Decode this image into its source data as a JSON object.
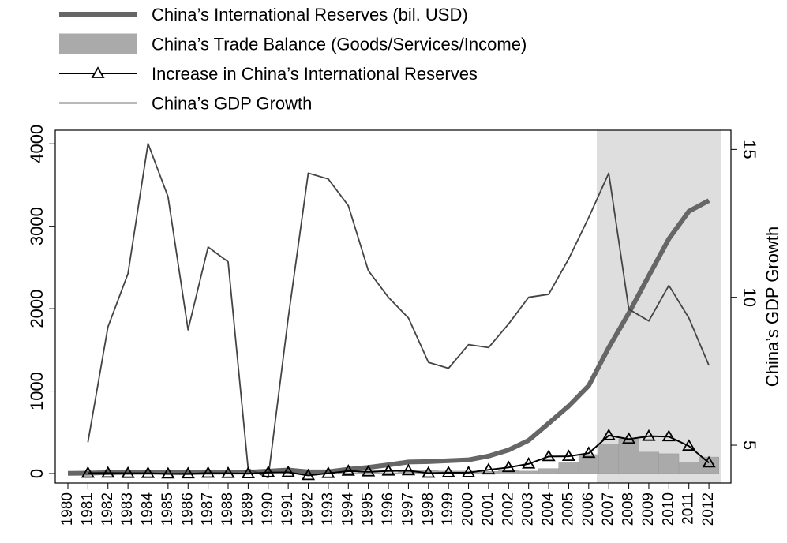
{
  "chart_data": {
    "type": "combo",
    "x": [
      1980,
      1981,
      1982,
      1983,
      1984,
      1985,
      1986,
      1987,
      1988,
      1989,
      1990,
      1991,
      1992,
      1993,
      1994,
      1995,
      1996,
      1997,
      1998,
      1999,
      2000,
      2001,
      2002,
      2003,
      2004,
      2005,
      2006,
      2007,
      2008,
      2009,
      2010,
      2011,
      2012
    ],
    "xlim": [
      1979.37,
      2013.1
    ],
    "ylim": [
      -115,
      4165
    ],
    "yticks": [
      0,
      1000,
      2000,
      3000,
      4000
    ],
    "y2lim": [
      3.72,
      15.65
    ],
    "y2ticks": [
      5,
      10,
      15
    ],
    "y2label": "China’s GDP Growth",
    "highlight": {
      "from": 2006.4,
      "to": 2012.6,
      "color": "#dedede"
    },
    "series": [
      {
        "name": "China’s International Reserves (bil. USD)",
        "kind": "thick-line",
        "color": "#666666",
        "values": [
          2.5,
          5,
          11,
          14,
          17,
          13,
          11,
          16,
          18,
          17,
          29,
          43,
          20,
          22,
          52,
          74,
          105,
          140,
          145,
          155,
          166,
          212,
          286,
          403,
          610,
          819,
          1066,
          1528,
          1946,
          2399,
          2847,
          3181,
          3312
        ]
      },
      {
        "name": "China’s Trade Balance (Goods/Services/Income)",
        "kind": "bar",
        "color": "#aaaaaa",
        "values": [
          null,
          null,
          null,
          null,
          null,
          null,
          null,
          null,
          null,
          null,
          null,
          null,
          null,
          null,
          8,
          12,
          10,
          38,
          39,
          30,
          30,
          25,
          35,
          30,
          60,
          130,
          230,
          360,
          420,
          260,
          240,
          140,
          200
        ]
      },
      {
        "name": "Increase in China’s International Reserves",
        "kind": "line-triangle",
        "color": "#000000",
        "values": [
          null,
          5,
          6,
          3,
          3,
          -4,
          -2,
          5,
          2,
          -1,
          12,
          14,
          -23,
          2,
          30,
          22,
          31,
          35,
          5,
          10,
          11,
          46,
          74,
          117,
          207,
          209,
          247,
          462,
          418,
          453,
          448,
          334,
          130
        ]
      },
      {
        "name": "China’s GDP Growth",
        "kind": "line",
        "color": "#444444",
        "axis": "y2",
        "values": [
          null,
          5.1,
          9.0,
          10.8,
          15.2,
          13.4,
          8.9,
          11.7,
          11.2,
          4.2,
          3.9,
          9.3,
          14.2,
          14.0,
          13.1,
          10.9,
          10.0,
          9.3,
          7.8,
          7.6,
          8.4,
          8.3,
          9.1,
          10.0,
          10.1,
          11.3,
          12.7,
          14.2,
          9.6,
          9.2,
          10.4,
          9.3,
          7.7
        ]
      }
    ]
  }
}
